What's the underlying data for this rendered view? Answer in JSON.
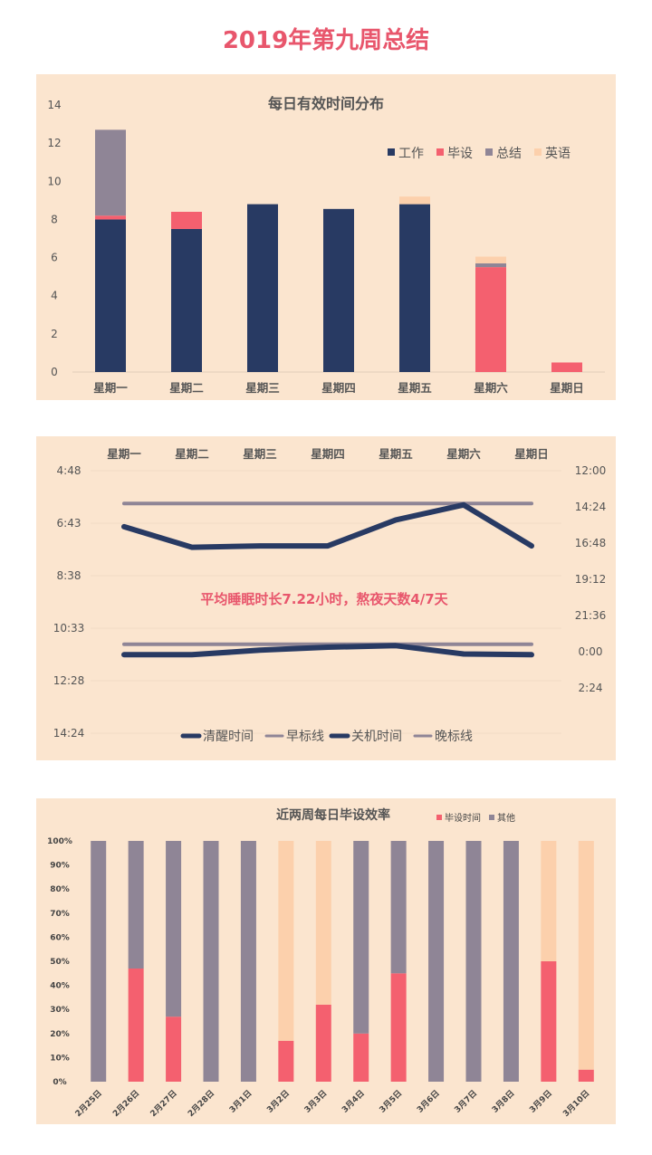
{
  "page": {
    "title": "2019年第九周总结"
  },
  "colors": {
    "navy": "#283a63",
    "pink": "#f4606f",
    "gray": "#8f8596",
    "peach": "#fcd0ac",
    "refline": "#8f8596"
  },
  "chart_data": [
    {
      "type": "bar",
      "stacked": true,
      "title": "每日有效时间分布",
      "categories": [
        "星期一",
        "星期二",
        "星期三",
        "星期四",
        "星期五",
        "星期六",
        "星期日"
      ],
      "series": [
        {
          "name": "工作",
          "color": "#283a63",
          "values": [
            8.0,
            7.5,
            8.8,
            8.55,
            8.8,
            0,
            0
          ]
        },
        {
          "name": "毕设",
          "color": "#f4606f",
          "values": [
            0.2,
            0.9,
            0,
            0,
            0,
            5.5,
            0.5
          ]
        },
        {
          "name": "总结",
          "color": "#8f8596",
          "values": [
            4.5,
            0,
            0,
            0,
            0,
            0.2,
            0
          ]
        },
        {
          "name": "英语",
          "color": "#fcd0ac",
          "values": [
            0,
            0,
            0,
            0,
            0.4,
            0.35,
            0
          ]
        }
      ],
      "ylim": [
        0,
        14
      ],
      "yticks": [
        "0",
        "2",
        "4",
        "6",
        "8",
        "10",
        "12",
        "14"
      ],
      "legend": "top-right"
    },
    {
      "type": "line",
      "categories": [
        "星期一",
        "星期二",
        "星期三",
        "星期四",
        "星期五",
        "星期六",
        "星期日"
      ],
      "left_axis": {
        "ticks": [
          "4:48",
          "6:43",
          "8:38",
          "10:33",
          "12:28",
          "14:24"
        ],
        "tick_hours": [
          4.8,
          6.72,
          8.64,
          10.56,
          12.48,
          14.4
        ],
        "range_hours": [
          4.8,
          14.4
        ],
        "reversed": true
      },
      "right_axis": {
        "ticks": [
          "12:00",
          "14:24",
          "16:48",
          "19:12",
          "21:36",
          "0:00",
          "2:24"
        ],
        "tick_hours": [
          12,
          14.4,
          16.8,
          19.2,
          21.6,
          24,
          26.4
        ],
        "range_hours": [
          12,
          26.4
        ],
        "reversed": true
      },
      "series": [
        {
          "name": "清醒时间",
          "axis": "left",
          "color": "#283a63",
          "width": 6,
          "values_hours": [
            6.85,
            7.6,
            7.55,
            7.55,
            6.6,
            6.05,
            7.55
          ]
        },
        {
          "name": "早标线",
          "axis": "left",
          "color": "#8f8596",
          "width": 4,
          "values_hours": [
            6.0,
            6.0,
            6.0,
            6.0,
            6.0,
            6.0,
            6.0
          ]
        },
        {
          "name": "关机时间",
          "axis": "right",
          "color": "#283a63",
          "width": 6,
          "values_hours": [
            24.2,
            24.2,
            23.9,
            23.7,
            23.6,
            24.15,
            24.2
          ]
        },
        {
          "name": "晚标线",
          "axis": "right",
          "color": "#8f8596",
          "width": 4,
          "values_hours": [
            23.5,
            23.5,
            23.5,
            23.5,
            23.5,
            23.5,
            23.5
          ]
        }
      ],
      "annotation": "平均睡眠时长7.22小时，熬夜天数4/7天",
      "legend": "bottom"
    },
    {
      "type": "bar",
      "stacked": true,
      "percent": true,
      "title": "近两周每日毕设效率",
      "categories": [
        "2月25日",
        "2月26日",
        "2月27日",
        "2月28日",
        "3月1日",
        "3月2日",
        "3月3日",
        "3月4日",
        "3月5日",
        "3月6日",
        "3月7日",
        "3月8日",
        "3月9日",
        "3月10日"
      ],
      "series": [
        {
          "name": "毕设时间",
          "color": "#f4606f",
          "values": [
            0,
            47,
            27,
            0,
            0,
            17,
            32,
            20,
            45,
            0,
            0,
            0,
            50,
            5
          ]
        },
        {
          "name": "其他",
          "color": "#8f8596",
          "values": [
            100,
            53,
            73,
            100,
            100,
            0,
            0,
            80,
            55,
            100,
            100,
            100,
            0,
            0
          ]
        },
        {
          "name": "",
          "color": "#fcd0ac",
          "values": [
            0,
            0,
            0,
            0,
            0,
            83,
            68,
            0,
            0,
            0,
            0,
            0,
            50,
            95
          ]
        }
      ],
      "ylim": [
        0,
        100
      ],
      "yticks": [
        "0%",
        "10%",
        "20%",
        "30%",
        "40%",
        "50%",
        "60%",
        "70%",
        "80%",
        "90%",
        "100%"
      ],
      "legend": "top-right"
    }
  ]
}
